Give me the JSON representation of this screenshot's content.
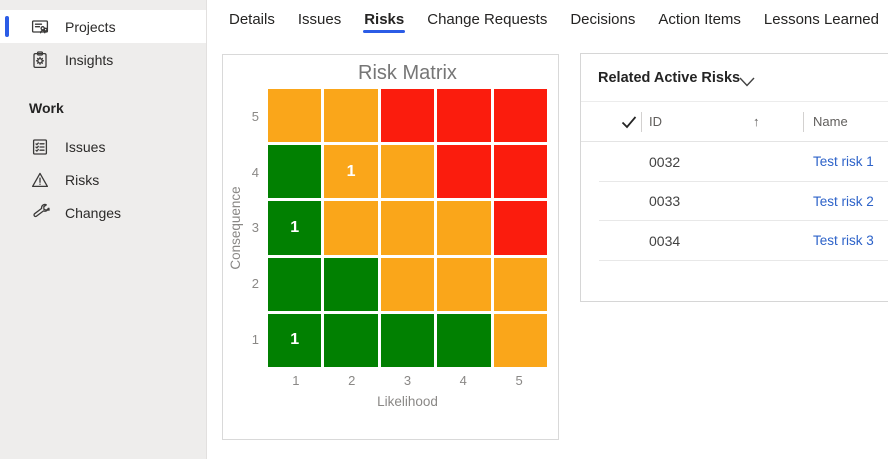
{
  "colors": {
    "accent": "#2b5ce6",
    "link": "#2c62c9",
    "matrix_green": "#018001",
    "matrix_orange": "#faa61a",
    "matrix_red": "#fb1c0d"
  },
  "sidebar": {
    "top_items": [
      {
        "label": "Projects",
        "selected": true,
        "icon": "projects-board-icon"
      },
      {
        "label": "Insights",
        "selected": false,
        "icon": "insights-clipboard-icon"
      }
    ],
    "work_section": {
      "label": "Work",
      "items": [
        {
          "label": "Issues",
          "icon": "issues-list-icon"
        },
        {
          "label": "Risks",
          "icon": "risk-triangle-icon"
        },
        {
          "label": "Changes",
          "icon": "wrench-icon"
        }
      ]
    }
  },
  "tabs": {
    "items": [
      {
        "label": "Details",
        "active": false
      },
      {
        "label": "Issues",
        "active": false
      },
      {
        "label": "Risks",
        "active": true
      },
      {
        "label": "Change Requests",
        "active": false
      },
      {
        "label": "Decisions",
        "active": false
      },
      {
        "label": "Action Items",
        "active": false
      },
      {
        "label": "Lessons Learned",
        "active": false
      }
    ]
  },
  "chart_data": {
    "type": "heatmap",
    "title": "Risk Matrix",
    "xlabel": "Likelihood",
    "ylabel": "Consequence",
    "x_ticks": [
      "1",
      "2",
      "3",
      "4",
      "5"
    ],
    "y_ticks": [
      "5",
      "4",
      "3",
      "2",
      "1"
    ],
    "legend": "none",
    "cell_levels": [
      [
        "orange",
        "orange",
        "red",
        "red",
        "red"
      ],
      [
        "green",
        "orange",
        "orange",
        "red",
        "red"
      ],
      [
        "green",
        "orange",
        "orange",
        "orange",
        "red"
      ],
      [
        "green",
        "green",
        "orange",
        "orange",
        "orange"
      ],
      [
        "green",
        "green",
        "green",
        "green",
        "orange"
      ]
    ],
    "cell_counts": [
      [
        null,
        null,
        null,
        null,
        null
      ],
      [
        null,
        1,
        null,
        null,
        null
      ],
      [
        1,
        null,
        null,
        null,
        null
      ],
      [
        null,
        null,
        null,
        null,
        null
      ],
      [
        1,
        null,
        null,
        null,
        null
      ]
    ],
    "risk_points": [
      {
        "likelihood": 2,
        "consequence": 4,
        "count": 1
      },
      {
        "likelihood": 1,
        "consequence": 3,
        "count": 1
      },
      {
        "likelihood": 1,
        "consequence": 1,
        "count": 1
      }
    ]
  },
  "related_risks_panel": {
    "title": "Related Active Risks",
    "chevron_icon": "chevron-down-icon",
    "table": {
      "select_all_icon": "checkmark-icon",
      "sort_icon_glyph": "↑",
      "columns": [
        {
          "label": "ID",
          "sorted": "asc"
        },
        {
          "label": "Name",
          "sorted": "none"
        }
      ],
      "rows": [
        {
          "id": "0032",
          "name": "Test risk 1"
        },
        {
          "id": "0033",
          "name": "Test risk 2"
        },
        {
          "id": "0034",
          "name": "Test risk 3"
        }
      ]
    }
  }
}
